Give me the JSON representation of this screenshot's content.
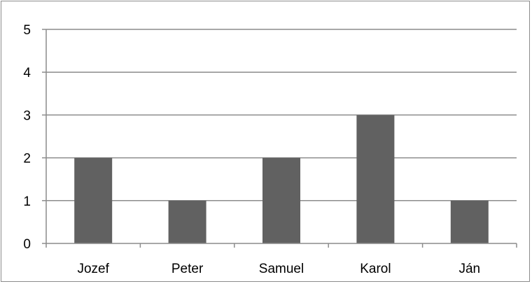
{
  "chart_data": {
    "type": "bar",
    "title": "",
    "xlabel": "",
    "ylabel": "",
    "categories": [
      "Jozef",
      "Peter",
      "Samuel",
      "Karol",
      "Ján"
    ],
    "values": [
      2,
      1,
      2,
      3,
      1
    ],
    "ylim": [
      0,
      5
    ],
    "yticks": [
      "0",
      "1",
      "2",
      "3",
      "4",
      "5"
    ],
    "grid": true,
    "legend": "none",
    "colors": {
      "bar": "#616161",
      "grid": "#8c8c8c",
      "axis": "#8c8c8c",
      "text": "#000000"
    }
  }
}
